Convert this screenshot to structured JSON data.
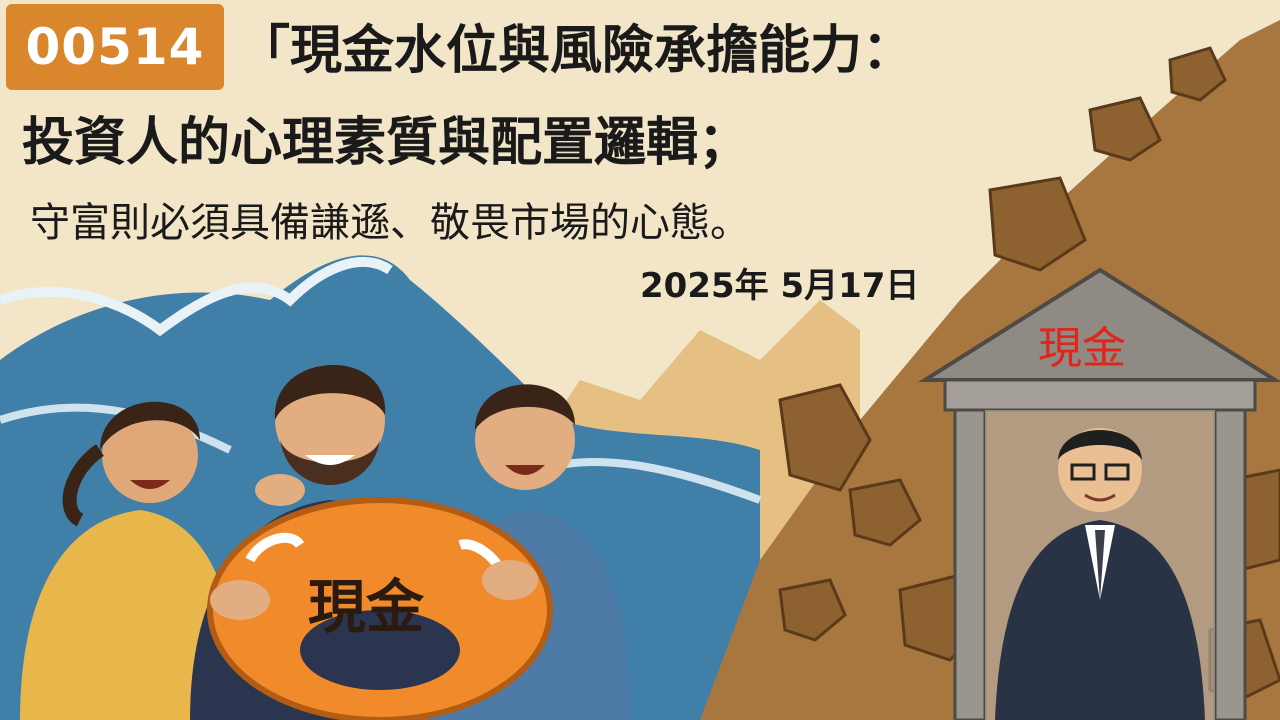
{
  "badge": {
    "code": "00514"
  },
  "title": {
    "line1": "「現金水位與風險承擔能力：",
    "line2": "投資人的心理素質與配置邏輯；"
  },
  "subtitle": "守富則必須具備謙遜、敬畏市場的心態。",
  "date": "2025年 5月17日",
  "illustration": {
    "lifebuoy_label": "現金",
    "shrine_label": "現金"
  },
  "colors": {
    "badge": "#d9862d",
    "background": "#f3e6c8",
    "wave": "#3f7fa8",
    "lifebuoy": "#f08a2a",
    "rockslide": "#a7773f",
    "shrine_label": "#e0261b"
  }
}
